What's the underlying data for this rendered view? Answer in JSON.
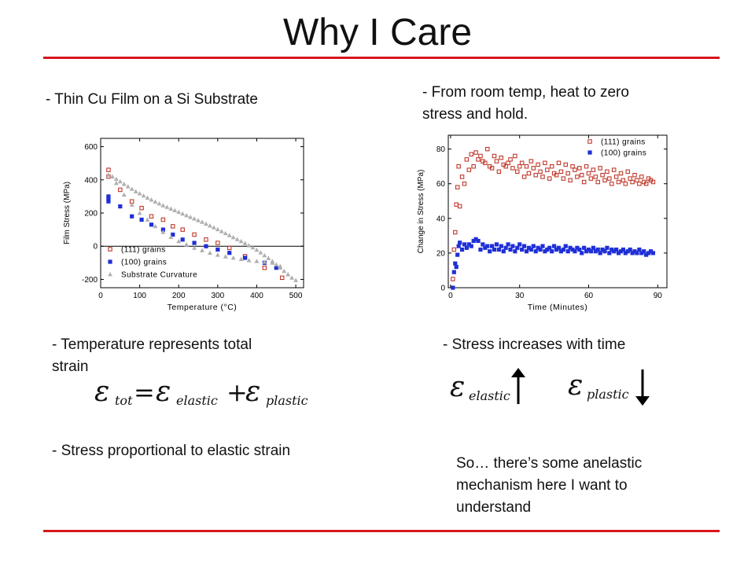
{
  "slide": {
    "title": "Why I Care",
    "bullet_left_1": "- Thin Cu Film on a Si Substrate",
    "bullet_right_1_line1": "- From room temp, heat to zero",
    "bullet_right_1_line2": "stress and hold.",
    "bullet_left_2_line1": "- Temperature represents total",
    "bullet_left_2_line2": "strain",
    "bullet_right_2": "- Stress increases with time",
    "bullet_left_3": "- Stress proportional to elastic strain",
    "conclusion_line1": "So… there’s some anelastic",
    "conclusion_line2": "mechanism here I want to",
    "conclusion_line3": "understand",
    "accent_color": "#d7161d"
  },
  "equation": {
    "eps": "ε",
    "sub_tot": "tot",
    "equals": "=",
    "sub_elastic": "elastic",
    "plus": "+",
    "sub_plastic": "plastic"
  },
  "arrows": {
    "elastic_direction": "up",
    "plastic_direction": "down"
  },
  "chart_data": [
    {
      "type": "scatter",
      "xlabel": "Temperature (°C)",
      "ylabel": "Film Stress (MPa)",
      "xlim": [
        0,
        520
      ],
      "ylim": [
        -250,
        650
      ],
      "xticks": [
        0,
        100,
        200,
        300,
        400,
        500
      ],
      "yticks": [
        -200,
        0,
        200,
        400,
        600
      ],
      "zero_line": true,
      "legend_position": "bottom-left",
      "series": [
        {
          "name": "(111) grains",
          "color": "#c0392b",
          "marker": "open-square",
          "x": [
            20,
            20,
            50,
            80,
            105,
            130,
            160,
            185,
            210,
            240,
            270,
            300,
            330,
            370,
            420,
            465
          ],
          "y": [
            460,
            420,
            340,
            270,
            230,
            180,
            160,
            120,
            100,
            70,
            40,
            20,
            -10,
            -60,
            -130,
            -190
          ]
        },
        {
          "name": "(100) grains",
          "color": "#1f2fd6",
          "marker": "filled-square",
          "x": [
            20,
            20,
            20,
            50,
            80,
            105,
            130,
            160,
            185,
            210,
            240,
            270,
            300,
            330,
            370,
            420,
            450
          ],
          "y": [
            300,
            285,
            270,
            240,
            180,
            160,
            130,
            100,
            70,
            40,
            20,
            0,
            -20,
            -40,
            -70,
            -100,
            -130
          ]
        },
        {
          "name": "Substrate Curvature",
          "color": "#b0b0b0",
          "marker": "triangle",
          "x": [
            20,
            30,
            40,
            50,
            60,
            70,
            80,
            90,
            100,
            110,
            120,
            130,
            140,
            150,
            160,
            170,
            180,
            190,
            200,
            210,
            220,
            230,
            240,
            250,
            260,
            270,
            280,
            290,
            300,
            310,
            320,
            330,
            340,
            350,
            360,
            370,
            380,
            390,
            400,
            410,
            420,
            430,
            440,
            450,
            460,
            470,
            480,
            490,
            500,
            40,
            60,
            80,
            100,
            120,
            140,
            160,
            180,
            200,
            220,
            240,
            260,
            280,
            300,
            320,
            340,
            360,
            380,
            400,
            420,
            440,
            460,
            480
          ],
          "y": [
            430,
            420,
            405,
            390,
            375,
            360,
            345,
            330,
            318,
            305,
            292,
            280,
            268,
            257,
            246,
            236,
            226,
            216,
            206,
            196,
            186,
            176,
            166,
            156,
            146,
            135,
            124,
            113,
            102,
            90,
            78,
            66,
            54,
            42,
            30,
            18,
            5,
            -8,
            -22,
            -38,
            -55,
            -72,
            -90,
            -110,
            -130,
            -150,
            -170,
            -190,
            -205,
            380,
            310,
            250,
            200,
            160,
            120,
            85,
            55,
            30,
            10,
            -10,
            -25,
            -40,
            -52,
            -62,
            -70,
            -78,
            -85,
            -90,
            -95,
            -100,
            -120,
            -170
          ]
        }
      ]
    },
    {
      "type": "scatter",
      "xlabel": "Time (Minutes)",
      "ylabel": "Change in Stress (MPa)",
      "xlim": [
        -1,
        94
      ],
      "ylim": [
        0,
        88
      ],
      "xticks": [
        0,
        30,
        60,
        90
      ],
      "yticks": [
        0,
        20,
        40,
        60,
        80
      ],
      "legend_position": "top-right",
      "series": [
        {
          "name": "(111) grains",
          "color": "#c0392b",
          "marker": "open-square",
          "x": [
            1,
            1.5,
            2,
            2.5,
            3,
            3.5,
            4,
            5,
            6,
            7,
            8,
            9,
            10,
            11,
            12,
            13,
            14,
            15,
            16,
            17,
            18,
            19,
            20,
            21,
            22,
            23,
            24,
            25,
            26,
            27,
            28,
            29,
            30,
            31,
            32,
            33,
            34,
            35,
            36,
            37,
            38,
            39,
            40,
            41,
            42,
            43,
            44,
            45,
            46,
            47,
            48,
            49,
            50,
            51,
            52,
            53,
            54,
            55,
            56,
            57,
            58,
            59,
            60,
            61,
            62,
            63,
            64,
            65,
            66,
            67,
            68,
            69,
            70,
            71,
            72,
            73,
            74,
            75,
            76,
            77,
            78,
            79,
            80,
            81,
            82,
            83,
            84,
            85,
            86,
            87,
            88
          ],
          "y": [
            5,
            22,
            32,
            48,
            58,
            70,
            47,
            64,
            60,
            74,
            68,
            77,
            70,
            78,
            74,
            76,
            73,
            72,
            80,
            70,
            69,
            76,
            73,
            67,
            75,
            71,
            70,
            72,
            74,
            69,
            76,
            67,
            70,
            72,
            64,
            70,
            66,
            73,
            69,
            65,
            71,
            67,
            64,
            72,
            68,
            63,
            70,
            66,
            65,
            72,
            67,
            63,
            71,
            66,
            62,
            70,
            68,
            64,
            69,
            65,
            61,
            70,
            66,
            63,
            68,
            64,
            61,
            69,
            65,
            62,
            67,
            63,
            60,
            68,
            64,
            61,
            66,
            62,
            60,
            67,
            63,
            61,
            65,
            62,
            60,
            64,
            61,
            60,
            63,
            62,
            61
          ],
          "note": ""
        },
        {
          "name": "(100) grains",
          "color": "#1f2fd6",
          "marker": "filled-square",
          "x": [
            1,
            1.5,
            2,
            2.5,
            3,
            3.5,
            4,
            5,
            6,
            7,
            8,
            9,
            10,
            11,
            12,
            13,
            14,
            15,
            16,
            17,
            18,
            19,
            20,
            21,
            22,
            23,
            24,
            25,
            26,
            27,
            28,
            29,
            30,
            31,
            32,
            33,
            34,
            35,
            36,
            37,
            38,
            39,
            40,
            41,
            42,
            43,
            44,
            45,
            46,
            47,
            48,
            49,
            50,
            51,
            52,
            53,
            54,
            55,
            56,
            57,
            58,
            59,
            60,
            61,
            62,
            63,
            64,
            65,
            66,
            67,
            68,
            69,
            70,
            71,
            72,
            73,
            74,
            75,
            76,
            77,
            78,
            79,
            80,
            81,
            82,
            83,
            84,
            85,
            86,
            87,
            88
          ],
          "y": [
            0,
            9,
            14,
            12,
            19,
            24,
            26,
            22,
            25,
            23,
            25,
            24,
            27,
            28,
            27,
            22,
            25,
            23,
            24,
            21,
            24,
            22,
            25,
            22,
            24,
            21,
            23,
            25,
            22,
            24,
            21,
            23,
            25,
            22,
            24,
            21,
            23,
            22,
            24,
            21,
            23,
            22,
            24,
            21,
            22,
            23,
            21,
            24,
            22,
            23,
            21,
            22,
            24,
            21,
            23,
            22,
            21,
            23,
            22,
            20,
            23,
            21,
            22,
            21,
            23,
            21,
            22,
            20,
            22,
            21,
            23,
            20,
            22,
            21,
            22,
            20,
            21,
            22,
            20,
            21,
            22,
            20,
            21,
            20,
            22,
            20,
            21,
            19,
            20,
            21,
            20
          ],
          "note": ""
        }
      ]
    }
  ]
}
